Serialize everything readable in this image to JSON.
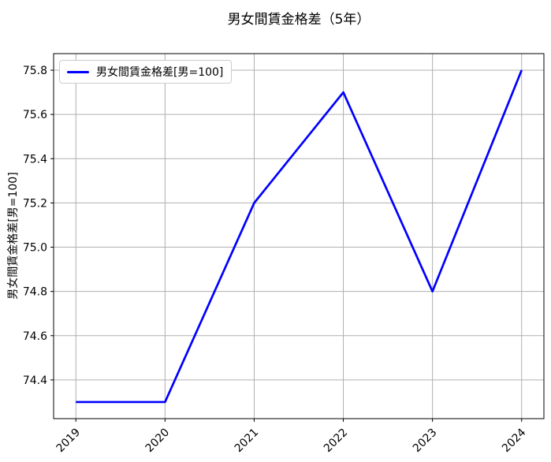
{
  "title": "男女間賃金格差（5年）",
  "chart_data": {
    "type": "line",
    "title": "男女間賃金格差（5年）",
    "xlabel": "",
    "ylabel": "男女間賃金格差[男=100]",
    "x": [
      2019,
      2020,
      2021,
      2022,
      2023,
      2024
    ],
    "series": [
      {
        "name": "男女間賃金格差[男=100]",
        "values": [
          74.3,
          74.3,
          75.2,
          75.7,
          74.8,
          75.8
        ],
        "color": "#0000ff"
      }
    ],
    "xticks": [
      2019,
      2020,
      2021,
      2022,
      2023,
      2024
    ],
    "yticks": [
      74.4,
      74.6,
      74.8,
      75.0,
      75.2,
      75.4,
      75.6,
      75.8
    ],
    "xlim": [
      2018.75,
      2024.25
    ],
    "ylim": [
      74.225,
      75.875
    ],
    "grid": true,
    "grid_color": "#b0b0b0",
    "line_width": 2.7,
    "legend_position": "upper left",
    "background": "#ffffff",
    "x_tick_rotation": -45
  }
}
